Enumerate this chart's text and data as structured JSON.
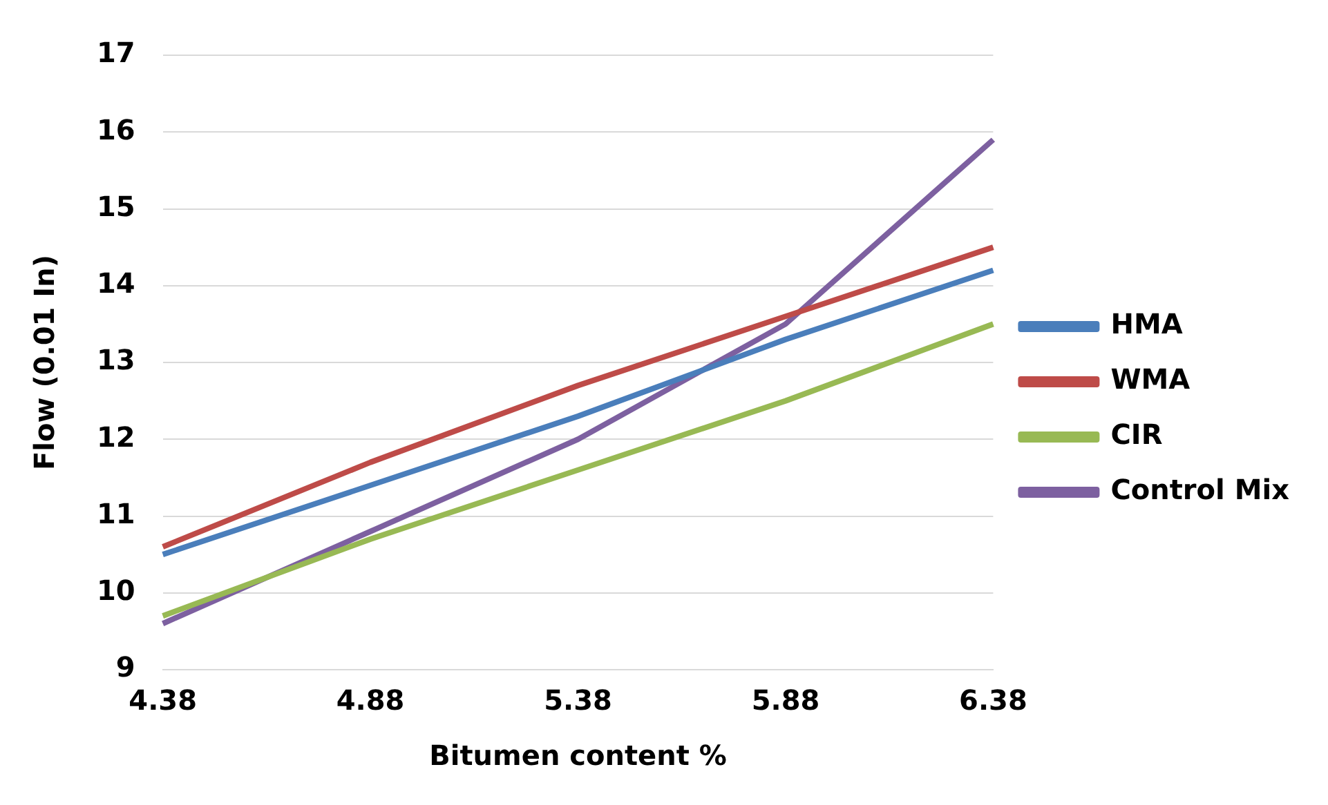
{
  "chart_data": {
    "type": "line",
    "xlabel": "Bitumen content %",
    "ylabel": "Flow (0.01 In)",
    "categories": [
      "4.38",
      "4.88",
      "5.38",
      "5.88",
      "6.38"
    ],
    "series": [
      {
        "name": "HMA",
        "color": "#4a7ebb",
        "values": [
          10.5,
          11.4,
          12.3,
          13.3,
          14.2
        ]
      },
      {
        "name": "WMA",
        "color": "#be4b48",
        "values": [
          10.6,
          11.7,
          12.7,
          13.6,
          14.5
        ]
      },
      {
        "name": "CIR",
        "color": "#98b954",
        "values": [
          9.7,
          10.7,
          11.6,
          12.5,
          13.5
        ]
      },
      {
        "name": "Control Mix",
        "color": "#7d60a0",
        "values": [
          9.6,
          10.8,
          12.0,
          13.5,
          15.9
        ]
      }
    ],
    "ylim": [
      9,
      17
    ],
    "yticks": [
      9,
      10,
      11,
      12,
      13,
      14,
      15,
      16,
      17
    ],
    "grid": "y",
    "legend": "right",
    "marker": "none",
    "line_style": "solid"
  }
}
